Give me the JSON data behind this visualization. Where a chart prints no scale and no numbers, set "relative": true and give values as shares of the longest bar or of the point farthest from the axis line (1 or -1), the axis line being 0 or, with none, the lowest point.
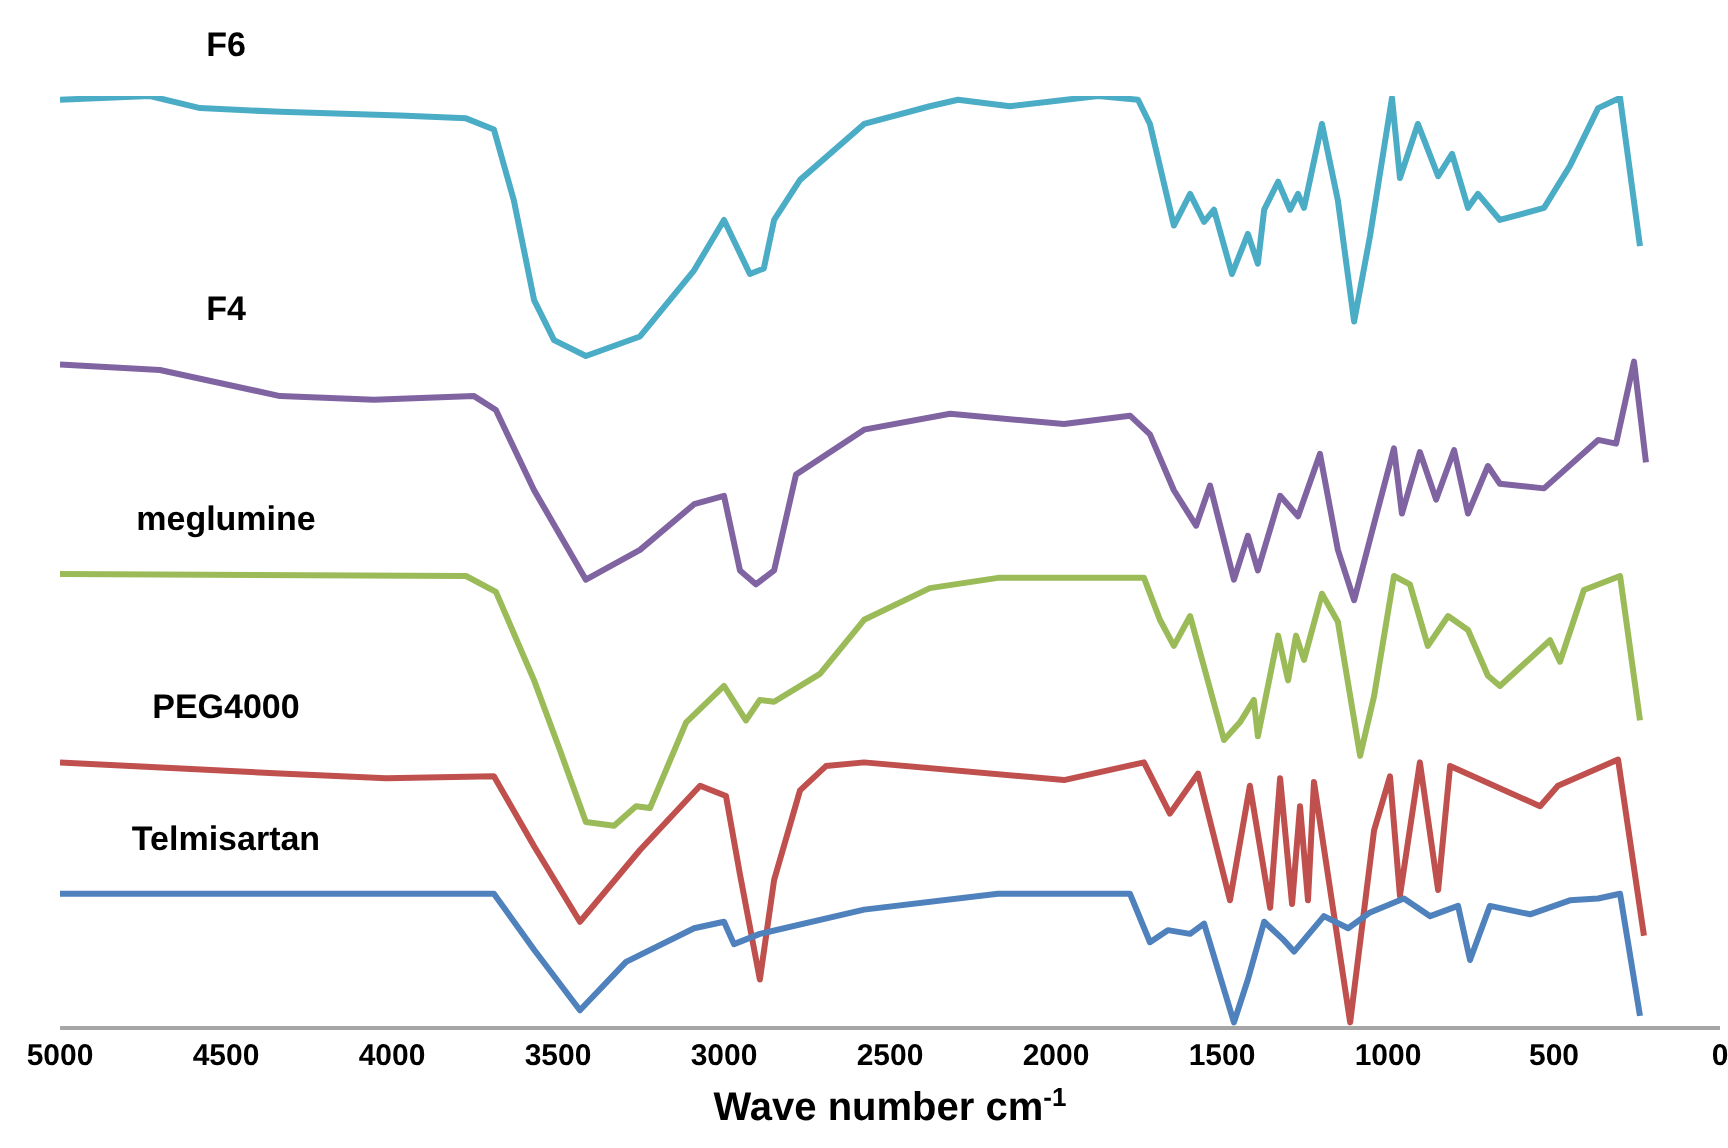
{
  "chart_data": {
    "type": "line",
    "relative": true,
    "xlabel": "Wave number cm$^{-1}$",
    "xlim": [
      5000,
      0
    ],
    "xticks": [
      5000,
      4500,
      4000,
      3500,
      3000,
      2500,
      2000,
      1500,
      1000,
      500,
      0
    ],
    "series": [
      {
        "name": "F6",
        "color": "#4bacc6",
        "x": [
          5000,
          4729,
          4578,
          4337,
          3976,
          3777,
          3693,
          3633,
          3572,
          3512,
          3416,
          3253,
          3090,
          3000,
          2922,
          2880,
          2849,
          2771,
          2578,
          2380,
          2295,
          2139,
          1873,
          1753,
          1717,
          1645,
          1596,
          1554,
          1524,
          1470,
          1422,
          1392,
          1373,
          1331,
          1295,
          1271,
          1253,
          1199,
          1151,
          1102,
          1054,
          988,
          964,
          910,
          849,
          807,
          759,
          729,
          663,
          530,
          452,
          367,
          301,
          241
        ],
        "values": [
          0.996,
          1.0,
          0.987,
          0.983,
          0.979,
          0.976,
          0.964,
          0.888,
          0.781,
          0.738,
          0.721,
          0.742,
          0.813,
          0.867,
          0.809,
          0.815,
          0.867,
          0.91,
          0.97,
          0.989,
          0.996,
          0.989,
          1.0,
          0.996,
          0.97,
          0.861,
          0.895,
          0.865,
          0.878,
          0.809,
          0.852,
          0.82,
          0.878,
          0.908,
          0.878,
          0.895,
          0.88,
          0.97,
          0.888,
          0.758,
          0.85,
          0.998,
          0.912,
          0.97,
          0.914,
          0.938,
          0.88,
          0.895,
          0.867,
          0.88,
          0.925,
          0.987,
          0.998,
          0.839
        ]
      },
      {
        "name": "F4",
        "color": "#8064a2",
        "x": [
          5000,
          4699,
          4337,
          4054,
          3753,
          3687,
          3572,
          3416,
          3253,
          3090,
          3000,
          2952,
          2904,
          2849,
          2783,
          2578,
          2319,
          1976,
          1777,
          1717,
          1645,
          1578,
          1536,
          1464,
          1422,
          1392,
          1325,
          1271,
          1205,
          1151,
          1102,
          1042,
          982,
          958,
          904,
          855,
          801,
          759,
          699,
          663,
          530,
          367,
          313,
          259,
          223
        ],
        "values": [
          0.712,
          0.706,
          0.678,
          0.674,
          0.678,
          0.663,
          0.577,
          0.481,
          0.513,
          0.562,
          0.571,
          0.491,
          0.476,
          0.491,
          0.594,
          0.642,
          0.659,
          0.648,
          0.657,
          0.637,
          0.577,
          0.539,
          0.582,
          0.481,
          0.528,
          0.491,
          0.571,
          0.549,
          0.616,
          0.513,
          0.459,
          0.541,
          0.622,
          0.552,
          0.618,
          0.567,
          0.62,
          0.552,
          0.603,
          0.584,
          0.579,
          0.631,
          0.627,
          0.715,
          0.607
        ]
      },
      {
        "name": "meglumine",
        "color": "#9bbb59",
        "x": [
          5000,
          3777,
          3687,
          3572,
          3494,
          3416,
          3331,
          3265,
          3223,
          3114,
          3000,
          2934,
          2892,
          2849,
          2711,
          2578,
          2380,
          2175,
          1735,
          1687,
          1645,
          1596,
          1494,
          1446,
          1404,
          1392,
          1331,
          1301,
          1277,
          1253,
          1199,
          1151,
          1084,
          1042,
          982,
          934,
          880,
          819,
          759,
          699,
          663,
          512,
          482,
          410,
          301,
          241
        ],
        "values": [
          0.487,
          0.485,
          0.468,
          0.373,
          0.298,
          0.221,
          0.217,
          0.238,
          0.236,
          0.328,
          0.367,
          0.33,
          0.352,
          0.35,
          0.38,
          0.438,
          0.472,
          0.483,
          0.483,
          0.438,
          0.41,
          0.442,
          0.309,
          0.328,
          0.352,
          0.313,
          0.421,
          0.373,
          0.421,
          0.395,
          0.466,
          0.436,
          0.292,
          0.356,
          0.485,
          0.476,
          0.41,
          0.442,
          0.427,
          0.378,
          0.367,
          0.416,
          0.393,
          0.47,
          0.485,
          0.33
        ]
      },
      {
        "name": "PEG4000",
        "color": "#c0504d",
        "x": [
          5000,
          4337,
          4018,
          3693,
          3572,
          3434,
          3253,
          3072,
          2994,
          2952,
          2892,
          2849,
          2771,
          2693,
          2578,
          1976,
          1735,
          1657,
          1572,
          1476,
          1416,
          1355,
          1325,
          1289,
          1265,
          1241,
          1223,
          1114,
          1042,
          994,
          964,
          904,
          849,
          813,
          542,
          488,
          307,
          229
        ],
        "values": [
          0.285,
          0.273,
          0.268,
          0.27,
          0.195,
          0.114,
          0.191,
          0.26,
          0.249,
          0.165,
          0.052,
          0.159,
          0.255,
          0.281,
          0.285,
          0.266,
          0.285,
          0.23,
          0.273,
          0.137,
          0.26,
          0.129,
          0.268,
          0.133,
          0.238,
          0.137,
          0.264,
          0.006,
          0.212,
          0.27,
          0.142,
          0.285,
          0.148,
          0.281,
          0.238,
          0.26,
          0.288,
          0.099
        ]
      },
      {
        "name": "Telmisartan",
        "color": "#4f81bd",
        "x": [
          5000,
          3693,
          3572,
          3434,
          3295,
          3090,
          3000,
          2970,
          2892,
          2578,
          2175,
          1777,
          1717,
          1663,
          1596,
          1554,
          1464,
          1422,
          1373,
          1313,
          1283,
          1193,
          1120,
          1054,
          952,
          873,
          789,
          753,
          693,
          572,
          452,
          367,
          301,
          241
        ],
        "values": [
          0.144,
          0.144,
          0.084,
          0.019,
          0.071,
          0.107,
          0.114,
          0.09,
          0.101,
          0.127,
          0.144,
          0.144,
          0.092,
          0.105,
          0.101,
          0.112,
          0.006,
          0.052,
          0.114,
          0.094,
          0.082,
          0.12,
          0.107,
          0.124,
          0.139,
          0.12,
          0.131,
          0.073,
          0.131,
          0.122,
          0.137,
          0.139,
          0.144,
          0.013
        ]
      }
    ]
  }
}
